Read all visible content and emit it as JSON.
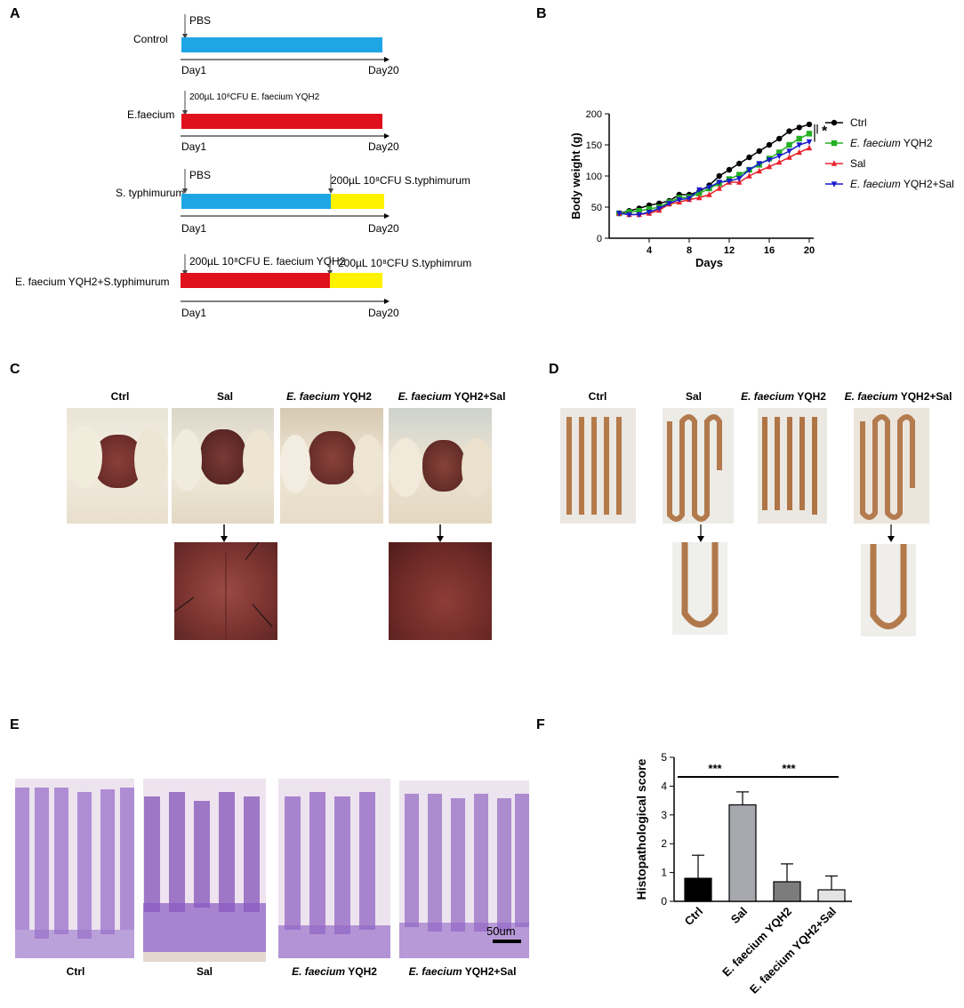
{
  "panels": {
    "A": "A",
    "B": "B",
    "C": "C",
    "D": "D",
    "E": "E",
    "F": "F"
  },
  "colors": {
    "pbs_bar": "#1ea6e4",
    "faecium_bar": "#e0101c",
    "salmonella_bar": "#fff200",
    "ctrl": "#000000",
    "faecium": "#22b022",
    "sal": "#e8242b",
    "combo": "#1a1acc"
  },
  "panel_a": {
    "rows": [
      {
        "group": "Control",
        "annotation_left": "PBS",
        "annotation_right": "",
        "day_start": "Day1",
        "day_end": "Day20"
      },
      {
        "group": "E.faecium",
        "annotation_left": "200µL 10⁸CFU E. faecium  YQH2",
        "annotation_right": "",
        "day_start": "Day1",
        "day_end": "Day20"
      },
      {
        "group": "S. typhimurum",
        "annotation_left": "PBS",
        "annotation_right": "200µL 10⁸CFU S.typhimurum",
        "day_start": "Day1",
        "day_end": "Day20"
      },
      {
        "group": "E. faecium YQH2+S.typhimurum",
        "annotation_left": "200µL 10⁸CFU E. faecium  YQH2",
        "annotation_right": "200µL 10⁸CFU S.typhimrum",
        "day_start": "Day1",
        "day_end": "Day20"
      }
    ]
  },
  "chart_data": {
    "type": "line",
    "xlabel": "Days",
    "ylabel": "Body weight (g)",
    "xlim": [
      0,
      20
    ],
    "ylim": [
      0,
      200
    ],
    "xticks": [
      4,
      8,
      12,
      16,
      20
    ],
    "yticks": [
      0,
      50,
      100,
      150,
      200
    ],
    "significance": "*",
    "legend_position": "right",
    "x": [
      1,
      2,
      3,
      4,
      5,
      6,
      7,
      8,
      9,
      10,
      11,
      12,
      13,
      14,
      15,
      16,
      17,
      18,
      19,
      20
    ],
    "series": [
      {
        "name": "Ctrl",
        "legend_italic": "",
        "legend_rest": "Ctrl",
        "color": "#000000",
        "marker": "circle",
        "values": [
          40,
          44,
          48,
          53,
          56,
          60,
          70,
          70,
          75,
          85,
          100,
          110,
          120,
          130,
          140,
          150,
          160,
          172,
          178,
          183
        ]
      },
      {
        "name": "E. faecium YQH2",
        "legend_italic": "E. faecium",
        "legend_rest": " YQH2",
        "color": "#22b022",
        "marker": "square",
        "values": [
          40,
          42,
          44,
          47,
          50,
          58,
          65,
          66,
          72,
          80,
          88,
          95,
          102,
          110,
          118,
          128,
          138,
          150,
          160,
          168
        ]
      },
      {
        "name": "Sal",
        "legend_italic": "",
        "legend_rest": "Sal",
        "color": "#e8242b",
        "marker": "triangle-up",
        "values": [
          40,
          38,
          38,
          40,
          45,
          55,
          58,
          62,
          65,
          70,
          80,
          90,
          90,
          100,
          108,
          115,
          122,
          130,
          138,
          145
        ]
      },
      {
        "name": "E. faecium YQH2+Sal",
        "legend_italic": "E. faecium",
        "legend_rest": " YQH2+Sal",
        "color": "#1a1acc",
        "marker": "triangle-down",
        "values": [
          40,
          38,
          38,
          42,
          48,
          56,
          62,
          64,
          78,
          82,
          90,
          92,
          96,
          110,
          120,
          126,
          132,
          140,
          150,
          155
        ]
      }
    ]
  },
  "panel_c": {
    "captions": [
      {
        "italic": "",
        "rest": "Ctrl"
      },
      {
        "italic": "",
        "rest": "Sal"
      },
      {
        "italic": "E. faecium",
        "rest": " YQH2"
      },
      {
        "italic": "E. faecium",
        "rest": " YQH2+Sal"
      }
    ]
  },
  "panel_d": {
    "captions": [
      {
        "italic": "",
        "rest": "Ctrl"
      },
      {
        "italic": "",
        "rest": "Sal"
      },
      {
        "italic": "E. faecium",
        "rest": " YQH2"
      },
      {
        "italic": "E. faecium",
        "rest": " YQH2+Sal"
      }
    ]
  },
  "panel_e": {
    "captions": [
      {
        "italic": "",
        "rest": "Ctrl"
      },
      {
        "italic": "",
        "rest": "Sal"
      },
      {
        "italic": "E. faecium",
        "rest": " YQH2"
      },
      {
        "italic": "E. faecium",
        "rest": " YQH2+Sal"
      }
    ],
    "scale_bar": "50um"
  },
  "chart_data_f": {
    "type": "bar",
    "ylabel": "Histopathological score",
    "ylim": [
      0,
      5
    ],
    "yticks": [
      0,
      1,
      2,
      3,
      4,
      5
    ],
    "categories": [
      "Ctrl",
      "Sal",
      "E. faecium YQH2",
      "E. faecium YQH2+Sal"
    ],
    "values": [
      0.8,
      3.35,
      0.68,
      0.4
    ],
    "errors": [
      0.8,
      0.45,
      0.62,
      0.48
    ],
    "colors": [
      "#000000",
      "#a7a8ad",
      "#7c7c7c",
      "#e4e4e4"
    ],
    "significance": [
      {
        "label": "***",
        "from": 0,
        "to": 1
      },
      {
        "label": "***",
        "from": 1,
        "to": 3
      }
    ]
  }
}
